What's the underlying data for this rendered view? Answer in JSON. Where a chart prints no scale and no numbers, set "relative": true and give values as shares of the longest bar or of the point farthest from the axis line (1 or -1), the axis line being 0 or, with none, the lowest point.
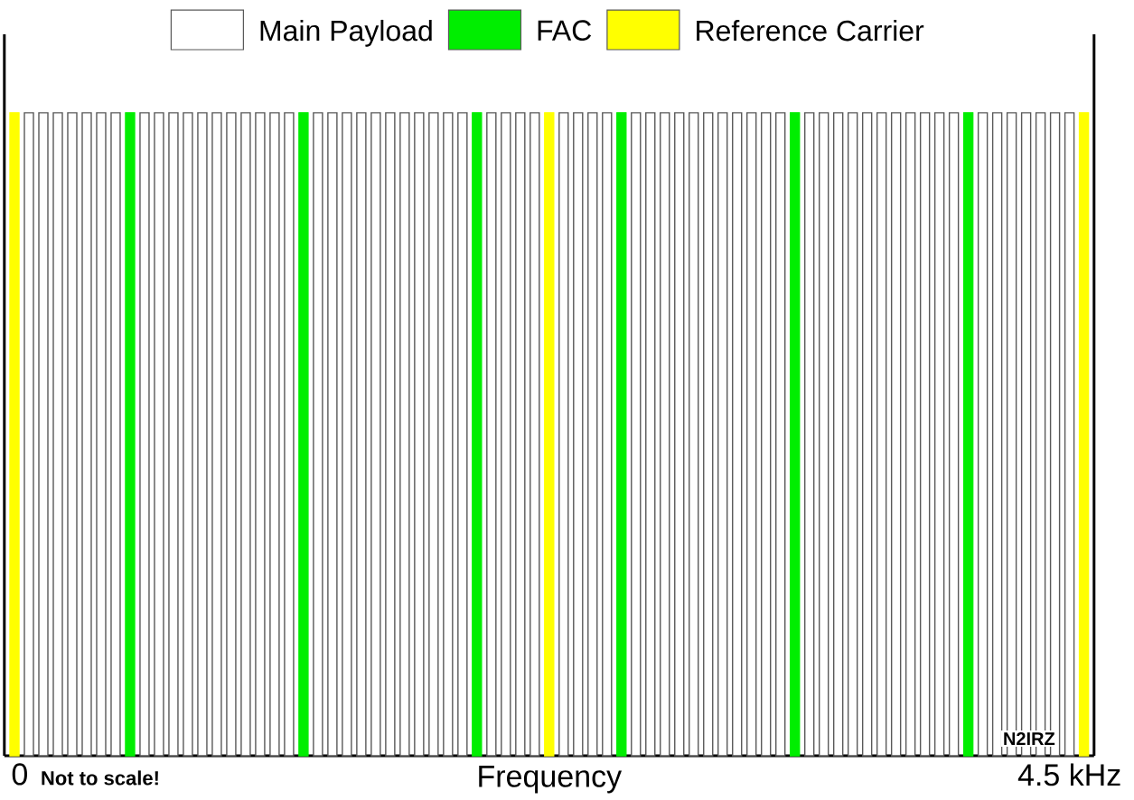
{
  "chart_data": {
    "type": "bar",
    "relative": true,
    "stacked": true,
    "categories": [
      null,
      null,
      null,
      null,
      null,
      null,
      null,
      null,
      null,
      null,
      null,
      null,
      null,
      null,
      null,
      null,
      null,
      null,
      null,
      null,
      null,
      null,
      null,
      null,
      null,
      null,
      null,
      null,
      null,
      null,
      null,
      null,
      null,
      null,
      null,
      null,
      null,
      null,
      null,
      null,
      null,
      null,
      null,
      null,
      null,
      null,
      null,
      null,
      null,
      null,
      null,
      null,
      null,
      null,
      null,
      null,
      null,
      null,
      null,
      null,
      null,
      null,
      null,
      null,
      null,
      null,
      null,
      null,
      null,
      null,
      null,
      null,
      null,
      null,
      null
    ],
    "series": [
      {
        "name": "Main Payload",
        "color": "#ffffff",
        "values": [
          0,
          1,
          1,
          1,
          1,
          1,
          1,
          1,
          0,
          1,
          1,
          1,
          1,
          1,
          1,
          1,
          1,
          1,
          1,
          1,
          0,
          1,
          1,
          1,
          1,
          1,
          1,
          1,
          1,
          1,
          1,
          1,
          0,
          1,
          1,
          1,
          1,
          0,
          1,
          1,
          1,
          1,
          0,
          1,
          1,
          1,
          1,
          1,
          1,
          1,
          1,
          1,
          1,
          1,
          0,
          1,
          1,
          1,
          1,
          1,
          1,
          1,
          1,
          1,
          1,
          1,
          0,
          1,
          1,
          1,
          1,
          1,
          1,
          1,
          0
        ]
      },
      {
        "name": "FAC",
        "color": "#00ee00",
        "values": [
          0,
          0,
          0,
          0,
          0,
          0,
          0,
          0,
          1,
          0,
          0,
          0,
          0,
          0,
          0,
          0,
          0,
          0,
          0,
          0,
          1,
          0,
          0,
          0,
          0,
          0,
          0,
          0,
          0,
          0,
          0,
          0,
          1,
          0,
          0,
          0,
          0,
          0,
          0,
          0,
          0,
          0,
          1,
          0,
          0,
          0,
          0,
          0,
          0,
          0,
          0,
          0,
          0,
          0,
          1,
          0,
          0,
          0,
          0,
          0,
          0,
          0,
          0,
          0,
          0,
          0,
          1,
          0,
          0,
          0,
          0,
          0,
          0,
          0,
          0
        ]
      },
      {
        "name": "Reference Carrier",
        "color": "#ffff00",
        "values": [
          1,
          0,
          0,
          0,
          0,
          0,
          0,
          0,
          0,
          0,
          0,
          0,
          0,
          0,
          0,
          0,
          0,
          0,
          0,
          0,
          0,
          0,
          0,
          0,
          0,
          0,
          0,
          0,
          0,
          0,
          0,
          0,
          0,
          0,
          0,
          0,
          0,
          1,
          0,
          0,
          0,
          0,
          0,
          0,
          0,
          0,
          0,
          0,
          0,
          0,
          0,
          0,
          0,
          0,
          0,
          0,
          0,
          0,
          0,
          0,
          0,
          0,
          0,
          0,
          0,
          0,
          0,
          0,
          0,
          0,
          0,
          0,
          0,
          0,
          1
        ]
      }
    ],
    "xlabel": "Frequency",
    "legend": "top",
    "annotations": [
      "0",
      "Not to scale!",
      "4.5 kHz",
      "N2IRZ"
    ]
  }
}
